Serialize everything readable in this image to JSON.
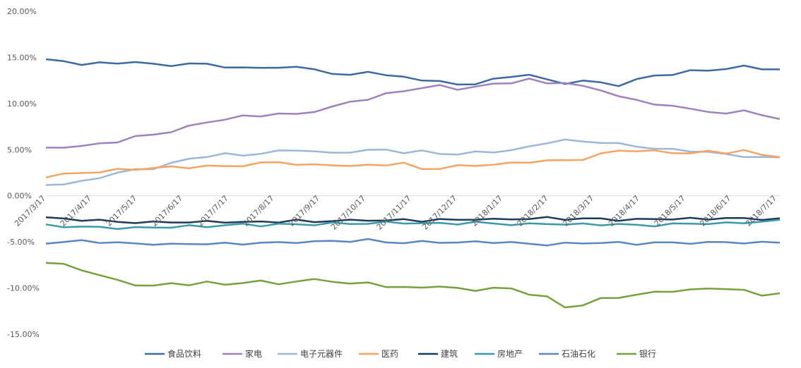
{
  "chart_data": {
    "type": "line",
    "title": "",
    "xlabel": "",
    "ylabel": "",
    "ylim": [
      -15,
      20
    ],
    "y_ticks": [
      "20.00%",
      "15.00%",
      "10.00%",
      "5.00%",
      "0.00%",
      "-5.00%",
      "-10.00%",
      "-15.00%"
    ],
    "y_tick_values": [
      20,
      15,
      10,
      5,
      0,
      -5,
      -10,
      -15
    ],
    "x_ticks": [
      "2017/3/17",
      "2017/4/17",
      "2017/5/17",
      "2017/6/17",
      "2017/7/17",
      "2017/8/17",
      "2017/9/17",
      "2017/10/17",
      "2017/11/17",
      "2017/12/17",
      "2018/1/17",
      "2018/2/17",
      "2018/3/17",
      "2018/4/17",
      "2018/5/17",
      "2018/6/17",
      "2018/7/17"
    ],
    "grid": false,
    "legend_position": "bottom",
    "series": [
      {
        "name": "食品饮料",
        "color": "#3d6aa0",
        "values": [
          14.8,
          14.5,
          14.3,
          14.4,
          14.3,
          14.6,
          14.2,
          14.1,
          14.4,
          14.2,
          14.0,
          13.9,
          13.8,
          14.0,
          13.9,
          13.7,
          13.3,
          13.0,
          13.5,
          13.1,
          12.8,
          12.6,
          12.4,
          12.0,
          12.2,
          12.6,
          12.9,
          13.2,
          12.5,
          12.2,
          12.5,
          12.2,
          12.0,
          12.6,
          13.0,
          13.2,
          13.5,
          13.6,
          13.8,
          14.0,
          13.8,
          13.7
        ]
      },
      {
        "name": "家电",
        "color": "#9f82bd",
        "values": [
          5.1,
          5.3,
          5.4,
          5.6,
          5.9,
          6.4,
          6.6,
          7.0,
          7.5,
          8.0,
          8.3,
          8.6,
          8.7,
          8.9,
          8.8,
          9.2,
          9.6,
          10.2,
          10.5,
          11.0,
          11.4,
          11.7,
          11.9,
          11.6,
          11.8,
          12.1,
          12.3,
          12.6,
          12.2,
          12.3,
          11.8,
          11.5,
          10.8,
          10.3,
          10.0,
          9.7,
          9.4,
          9.2,
          8.8,
          9.3,
          8.8,
          8.2
        ]
      },
      {
        "name": "电子元器件",
        "color": "#9db7db",
        "values": [
          1.2,
          1.3,
          1.5,
          2.0,
          2.5,
          2.8,
          3.0,
          3.5,
          4.0,
          4.3,
          4.5,
          4.4,
          4.6,
          4.8,
          5.0,
          4.8,
          4.6,
          4.8,
          4.9,
          5.0,
          4.7,
          4.8,
          4.6,
          4.5,
          4.7,
          4.8,
          4.9,
          5.3,
          5.8,
          6.0,
          5.9,
          5.8,
          5.6,
          5.4,
          5.1,
          5.0,
          4.9,
          4.7,
          4.5,
          4.3,
          4.1,
          4.2
        ]
      },
      {
        "name": "医药",
        "color": "#f5a462",
        "values": [
          2.1,
          2.3,
          2.5,
          2.6,
          2.8,
          2.9,
          3.0,
          3.1,
          3.1,
          3.2,
          3.2,
          3.3,
          3.5,
          3.7,
          3.4,
          3.3,
          3.4,
          3.2,
          3.3,
          3.4,
          3.5,
          2.9,
          3.0,
          3.2,
          3.3,
          3.4,
          3.5,
          3.7,
          3.8,
          3.8,
          4.0,
          4.5,
          4.9,
          4.9,
          4.8,
          4.7,
          4.6,
          4.8,
          4.7,
          4.9,
          4.4,
          4.3
        ]
      },
      {
        "name": "建筑",
        "color": "#1f3a5c",
        "values": [
          -2.4,
          -2.5,
          -2.6,
          -2.7,
          -2.8,
          -2.9,
          -2.9,
          -2.8,
          -2.9,
          -2.8,
          -2.8,
          -2.9,
          -2.8,
          -2.8,
          -2.7,
          -2.8,
          -2.7,
          -2.7,
          -2.6,
          -2.7,
          -2.6,
          -2.7,
          -2.6,
          -2.6,
          -2.5,
          -2.6,
          -2.5,
          -2.5,
          -2.4,
          -2.5,
          -2.5,
          -2.5,
          -2.6,
          -2.6,
          -2.5,
          -2.5,
          -2.5,
          -2.5,
          -2.4,
          -2.5,
          -2.5,
          -2.5
        ]
      },
      {
        "name": "房地产",
        "color": "#3a9aa8",
        "values": [
          -3.2,
          -3.3,
          -3.4,
          -3.4,
          -3.5,
          -3.5,
          -3.4,
          -3.4,
          -3.3,
          -3.3,
          -3.2,
          -3.1,
          -3.2,
          -3.1,
          -3.1,
          -3.1,
          -3.0,
          -3.0,
          -3.0,
          -2.9,
          -2.9,
          -3.0,
          -3.0,
          -3.0,
          -2.9,
          -3.0,
          -3.1,
          -3.1,
          -3.0,
          -3.1,
          -3.1,
          -3.1,
          -3.1,
          -3.2,
          -3.2,
          -3.1,
          -3.0,
          -3.0,
          -3.0,
          -2.9,
          -2.8,
          -2.7
        ]
      },
      {
        "name": "石油石化",
        "color": "#5a87c0",
        "values": [
          -5.1,
          -5.0,
          -4.9,
          -5.0,
          -5.1,
          -5.2,
          -5.2,
          -5.3,
          -5.2,
          -5.2,
          -5.2,
          -5.2,
          -5.1,
          -5.1,
          -5.0,
          -5.0,
          -4.9,
          -4.9,
          -4.8,
          -5.0,
          -5.1,
          -5.0,
          -5.0,
          -5.1,
          -5.0,
          -5.0,
          -5.1,
          -5.2,
          -5.3,
          -5.2,
          -5.1,
          -5.1,
          -5.1,
          -5.2,
          -5.1,
          -5.1,
          -5.1,
          -5.1,
          -5.0,
          -5.1,
          -5.1,
          -5.0
        ]
      },
      {
        "name": "银行",
        "color": "#77a03e",
        "values": [
          -7.2,
          -7.5,
          -8.0,
          -8.6,
          -9.2,
          -9.6,
          -9.8,
          -9.5,
          -9.6,
          -9.4,
          -9.6,
          -9.4,
          -9.3,
          -9.5,
          -9.3,
          -9.1,
          -9.2,
          -9.6,
          -9.4,
          -9.8,
          -10.0,
          -9.9,
          -9.8,
          -10.1,
          -10.2,
          -10.0,
          -10.1,
          -10.6,
          -11.0,
          -12.1,
          -11.8,
          -11.2,
          -11.0,
          -10.7,
          -10.5,
          -10.3,
          -10.2,
          -10.1,
          -10.0,
          -10.3,
          -10.8,
          -10.5
        ]
      }
    ]
  }
}
